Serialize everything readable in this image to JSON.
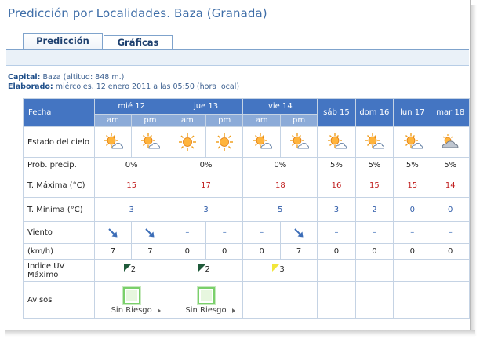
{
  "page": {
    "title": "Predicción por Localidades. Baza (Granada)"
  },
  "tabs": [
    {
      "label": "Predicción",
      "active": true
    },
    {
      "label": "Gráficas",
      "active": false
    }
  ],
  "meta": {
    "capital_label": "Capital:",
    "capital_value": "Baza (altitud: 848 m.)",
    "elaborado_label": "Elaborado:",
    "elaborado_value": "miércoles, 12 enero 2011 a las 05:50 (hora local)"
  },
  "table": {
    "fecha_label": "Fecha",
    "days": [
      {
        "label": "mié 12",
        "split": true
      },
      {
        "label": "jue 13",
        "split": true
      },
      {
        "label": "vie 14",
        "split": true
      },
      {
        "label": "sáb 15",
        "split": false
      },
      {
        "label": "dom 16",
        "split": false
      },
      {
        "label": "lun 17",
        "split": false
      },
      {
        "label": "mar 18",
        "split": false
      }
    ],
    "sub_am": "am",
    "sub_pm": "pm",
    "rows": {
      "sky_label": "Estado del cielo",
      "sky_icons": [
        "sun-partly-cloudy-icon",
        "sun-partly-cloudy-icon",
        "sun-icon",
        "sun-icon",
        "sun-partly-cloudy-icon",
        "sun-partly-cloudy-icon",
        "sun-partly-cloudy-icon",
        "sun-partly-cloudy-icon",
        "sun-partly-cloudy-icon",
        "cloudy-icon"
      ],
      "precip_label": "Prob. precip.",
      "precip": [
        "0%",
        "0%",
        "0%",
        "5%",
        "5%",
        "5%",
        "5%"
      ],
      "tmax_label": "T. Máxima (°C)",
      "tmax": [
        "15",
        "17",
        "18",
        "16",
        "15",
        "15",
        "14"
      ],
      "tmin_label": "T. Mínima (°C)",
      "tmin": [
        "3",
        "3",
        "5",
        "3",
        "2",
        "0",
        "0"
      ],
      "wind_label": "Viento",
      "wind_dirs": [
        "se",
        "se",
        "calm",
        "calm",
        "calm",
        "se",
        "calm",
        "calm",
        "calm",
        "calm"
      ],
      "wind_calm_symbol": "–",
      "kmh_label": "(km/h)",
      "kmh": [
        "7",
        "7",
        "0",
        "0",
        "0",
        "7",
        "0",
        "0",
        "0",
        "0"
      ],
      "uv_label": "Indice UV Máximo",
      "uv": [
        {
          "value": "2",
          "color": "#1f5a3a"
        },
        {
          "value": "2",
          "color": "#1f5a3a"
        },
        {
          "value": "3",
          "color": "#f2e63a"
        }
      ],
      "avisos_label": "Avisos",
      "avisos": [
        {
          "text": "Sin Riesgo"
        },
        {
          "text": "Sin Riesgo"
        }
      ]
    }
  },
  "colors": {
    "header": "#4475c2",
    "subheader": "#8cabd8",
    "tmax": "#c01d1d",
    "tmin": "#2d5aa8",
    "aviso_green": "#7ad06b"
  }
}
